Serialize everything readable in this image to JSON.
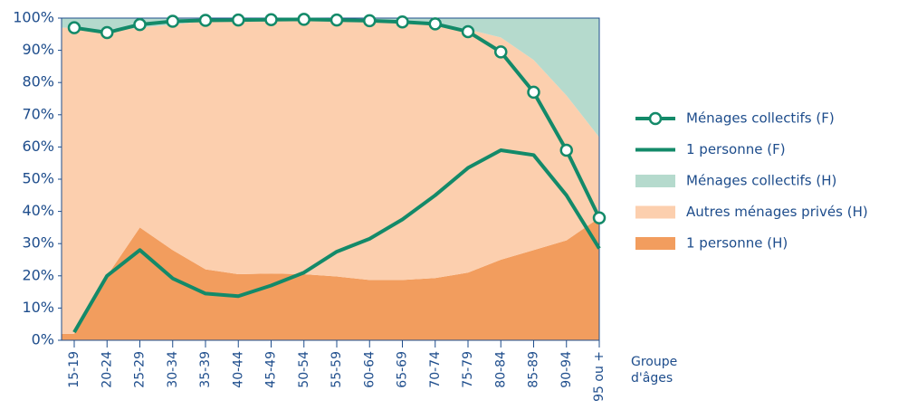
{
  "chart_data": {
    "type": "area",
    "categories": [
      "15-19",
      "20-24",
      "25-29",
      "30-34",
      "35-39",
      "40-44",
      "45-49",
      "50-54",
      "55-59",
      "60-64",
      "65-69",
      "70-74",
      "75-79",
      "80-84",
      "85-89",
      "90-94",
      "95 ou +"
    ],
    "x_label": [
      "Groupe",
      "d'âges"
    ],
    "ylim": [
      0,
      100
    ],
    "yticks": [
      {
        "value": 0,
        "label": "0%"
      },
      {
        "value": 10,
        "label": "10%"
      },
      {
        "value": 20,
        "label": "20%"
      },
      {
        "value": 30,
        "label": "30%"
      },
      {
        "value": 40,
        "label": "40%"
      },
      {
        "value": 50,
        "label": "50%"
      },
      {
        "value": 60,
        "label": "60%"
      },
      {
        "value": 70,
        "label": "70%"
      },
      {
        "value": 80,
        "label": "80%"
      },
      {
        "value": 90,
        "label": "90%"
      },
      {
        "value": 100,
        "label": "100%"
      }
    ],
    "series": [
      {
        "name": "Ménages collectifs (F)",
        "type": "line",
        "marker": true,
        "color": "#138a69",
        "values": [
          97,
          95.5,
          98,
          99,
          99.3,
          99.4,
          99.5,
          99.6,
          99.4,
          99.2,
          98.8,
          98.2,
          95.8,
          89.5,
          77,
          59,
          38
        ]
      },
      {
        "name": "1 personne (F)",
        "type": "line",
        "marker": false,
        "color": "#138a69",
        "values": [
          2.5,
          20,
          28,
          19.2,
          14.5,
          13.7,
          17,
          21,
          27.5,
          31.5,
          37.5,
          45,
          53.5,
          59,
          57.5,
          45,
          28.5
        ]
      },
      {
        "name": "Ménages collectifs (H)",
        "type": "area",
        "stack": 2,
        "color": "#b5dacd",
        "values": [
          3,
          4,
          3,
          2,
          1,
          0.7,
          0.5,
          0.5,
          0.7,
          1,
          1.5,
          2,
          3.5,
          6,
          13,
          24,
          37
        ]
      },
      {
        "name": "Autres ménages privés (H)",
        "type": "area",
        "stack": 1,
        "color": "#fccfae",
        "values": [
          95,
          76,
          62,
          70,
          77,
          78.8,
          78.8,
          79,
          79.5,
          80.3,
          79.8,
          78.7,
          75.5,
          69,
          59,
          45,
          25
        ]
      },
      {
        "name": "1 personne (H)",
        "type": "area",
        "stack": 0,
        "color": "#f29d5e",
        "values": [
          2,
          20,
          35,
          28,
          22,
          20.5,
          20.7,
          20.5,
          19.8,
          18.7,
          18.7,
          19.3,
          21,
          25,
          28,
          31,
          38
        ]
      }
    ]
  }
}
